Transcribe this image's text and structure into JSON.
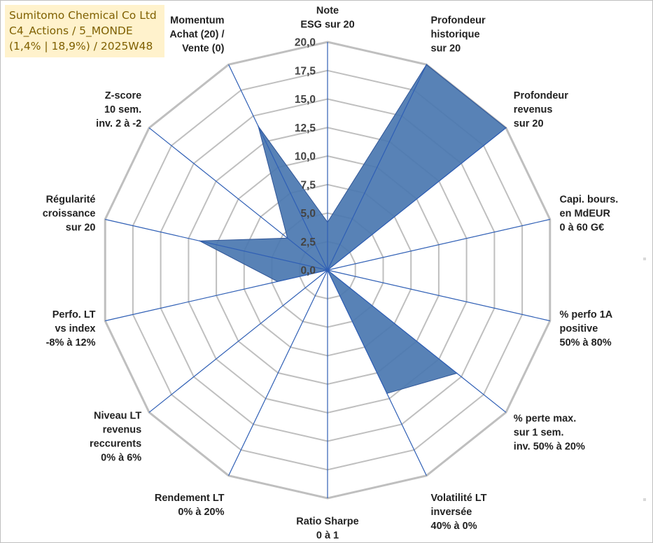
{
  "title": {
    "line1": "Sumitomo Chemical Co Ltd",
    "line2": "C4_Actions / 5_MONDE",
    "line3": "(1,4% | 18,9%) / 2025W48"
  },
  "colors": {
    "series_fill": "#4a77b0",
    "series_line": "#2f5597",
    "grid": "#bfbfbf",
    "axis": "#2f5fb5",
    "title_bg": "#fff2cc",
    "title_text": "#7f6000"
  },
  "chart_data": {
    "type": "radar",
    "title": "Sumitomo Chemical Co Ltd",
    "rlim": [
      0,
      20
    ],
    "rticks": [
      "0,0",
      "2,5",
      "5,0",
      "7,5",
      "10,0",
      "12,5",
      "15,0",
      "17,5",
      "20,0"
    ],
    "axes": [
      [
        "Note",
        "ESG sur 20"
      ],
      [
        "Profondeur",
        "historique",
        "sur 20"
      ],
      [
        "Profondeur",
        "revenus",
        "sur 20"
      ],
      [
        "Capi. bours.",
        "en MdEUR",
        "0 à 60 G€"
      ],
      [
        "% perfo 1A",
        "positive",
        "50% à 80%"
      ],
      [
        "% perte max.",
        "sur 1 sem.",
        "inv. 50% à 20%"
      ],
      [
        "Volatilité LT",
        "inversée",
        "40% à 0%"
      ],
      [
        "Ratio Sharpe",
        "0 à 1"
      ],
      [
        "Rendement LT",
        "0% à 20%"
      ],
      [
        "Niveau LT",
        "revenus",
        "reccurents",
        "0% à 6%"
      ],
      [
        "Perfo. LT",
        "vs index",
        "-8% à 12%"
      ],
      [
        "Régularité",
        "croissance",
        "sur 20"
      ],
      [
        "Z-score",
        "10 sem.",
        "inv. 2 à -2"
      ],
      [
        "Momentum",
        "Achat (20) /",
        "Vente (0)"
      ]
    ],
    "series": [
      {
        "name": "Sumitomo Chemical Co Ltd",
        "values": [
          4.2,
          20.0,
          20.0,
          0.0,
          0.0,
          14.5,
          12.0,
          0.0,
          0.0,
          0.0,
          4.5,
          11.5,
          4.5,
          14.0
        ]
      }
    ],
    "grid": true,
    "legend": "none"
  }
}
